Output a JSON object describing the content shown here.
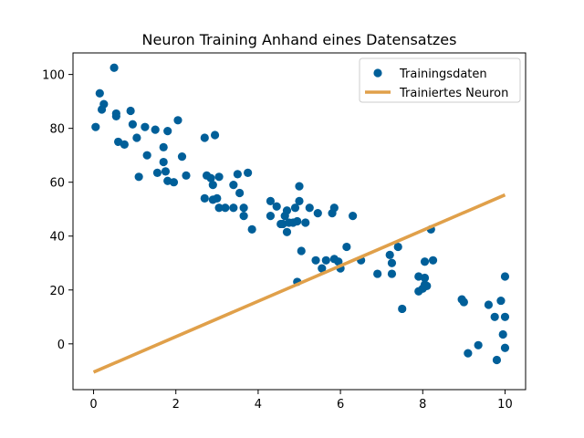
{
  "chart_data": {
    "type": "scatter",
    "title": "Neuron Training Anhand eines Datensatzes",
    "xlabel": "",
    "ylabel": "",
    "xlim": [
      -0.5,
      10.5
    ],
    "ylim": [
      -17,
      108
    ],
    "xticks": [
      0,
      2,
      4,
      6,
      8,
      10
    ],
    "yticks": [
      0,
      20,
      40,
      60,
      80,
      100
    ],
    "grid": false,
    "legend_position": "top-right",
    "series": [
      {
        "name": "Trainingsdaten",
        "kind": "scatter",
        "color": "#005f99",
        "points": [
          [
            0.05,
            80.5
          ],
          [
            0.15,
            93
          ],
          [
            0.2,
            87
          ],
          [
            0.25,
            89
          ],
          [
            0.5,
            102.5
          ],
          [
            0.55,
            84.5
          ],
          [
            0.55,
            85.5
          ],
          [
            0.6,
            75
          ],
          [
            0.75,
            74
          ],
          [
            0.9,
            86.5
          ],
          [
            0.95,
            81.5
          ],
          [
            1.05,
            76.5
          ],
          [
            1.1,
            62
          ],
          [
            1.25,
            80.5
          ],
          [
            1.3,
            70
          ],
          [
            1.5,
            79.5
          ],
          [
            1.55,
            63.5
          ],
          [
            1.7,
            73
          ],
          [
            1.7,
            67.5
          ],
          [
            1.75,
            64
          ],
          [
            1.8,
            79
          ],
          [
            1.8,
            60.5
          ],
          [
            1.95,
            60
          ],
          [
            2.05,
            83
          ],
          [
            2.15,
            69.5
          ],
          [
            2.25,
            62.5
          ],
          [
            2.7,
            76.5
          ],
          [
            2.7,
            54
          ],
          [
            2.75,
            62.5
          ],
          [
            2.85,
            61.5
          ],
          [
            2.9,
            59
          ],
          [
            2.9,
            53.5
          ],
          [
            2.95,
            77.5
          ],
          [
            3.0,
            54
          ],
          [
            3.05,
            62
          ],
          [
            3.05,
            50.5
          ],
          [
            3.2,
            50.5
          ],
          [
            3.4,
            50.5
          ],
          [
            3.4,
            59
          ],
          [
            3.5,
            63
          ],
          [
            3.55,
            56
          ],
          [
            3.65,
            50.5
          ],
          [
            3.65,
            47.5
          ],
          [
            3.75,
            63.5
          ],
          [
            3.85,
            42.5
          ],
          [
            4.3,
            53
          ],
          [
            4.3,
            47.5
          ],
          [
            4.45,
            51
          ],
          [
            4.55,
            44.5
          ],
          [
            4.6,
            44.5
          ],
          [
            4.65,
            47.5
          ],
          [
            4.7,
            49.5
          ],
          [
            4.7,
            41.5
          ],
          [
            4.75,
            45
          ],
          [
            4.85,
            45
          ],
          [
            4.9,
            50.5
          ],
          [
            4.95,
            23
          ],
          [
            4.95,
            45.5
          ],
          [
            5.0,
            58.5
          ],
          [
            5.0,
            53
          ],
          [
            5.05,
            34.5
          ],
          [
            5.15,
            45
          ],
          [
            5.25,
            50.5
          ],
          [
            5.4,
            31
          ],
          [
            5.45,
            48.5
          ],
          [
            5.55,
            28
          ],
          [
            5.65,
            31
          ],
          [
            5.8,
            48.5
          ],
          [
            5.85,
            31.5
          ],
          [
            5.85,
            50.5
          ],
          [
            5.95,
            30.5
          ],
          [
            6.0,
            28
          ],
          [
            6.15,
            36
          ],
          [
            6.3,
            47.5
          ],
          [
            6.5,
            31
          ],
          [
            6.9,
            26
          ],
          [
            7.2,
            33
          ],
          [
            7.25,
            26
          ],
          [
            7.25,
            30
          ],
          [
            7.4,
            36
          ],
          [
            7.5,
            13
          ],
          [
            7.9,
            25
          ],
          [
            7.9,
            19.5
          ],
          [
            8.0,
            20.5
          ],
          [
            8.05,
            22
          ],
          [
            8.05,
            24.5
          ],
          [
            8.1,
            21.5
          ],
          [
            8.05,
            30.5
          ],
          [
            8.2,
            42.5
          ],
          [
            8.25,
            31
          ],
          [
            8.95,
            16.5
          ],
          [
            9.0,
            15.5
          ],
          [
            9.1,
            -3.5
          ],
          [
            9.35,
            -0.5
          ],
          [
            9.6,
            14.5
          ],
          [
            9.75,
            10
          ],
          [
            9.8,
            -6
          ],
          [
            9.9,
            16
          ],
          [
            9.95,
            3.5
          ],
          [
            10.0,
            10
          ],
          [
            10.0,
            -1.5
          ],
          [
            10.0,
            25
          ]
        ]
      },
      {
        "name": "Trainiertes Neuron",
        "kind": "line",
        "color": "#e0a04a",
        "x": [
          0,
          10
        ],
        "y": [
          -10.5,
          55.3
        ]
      }
    ]
  }
}
